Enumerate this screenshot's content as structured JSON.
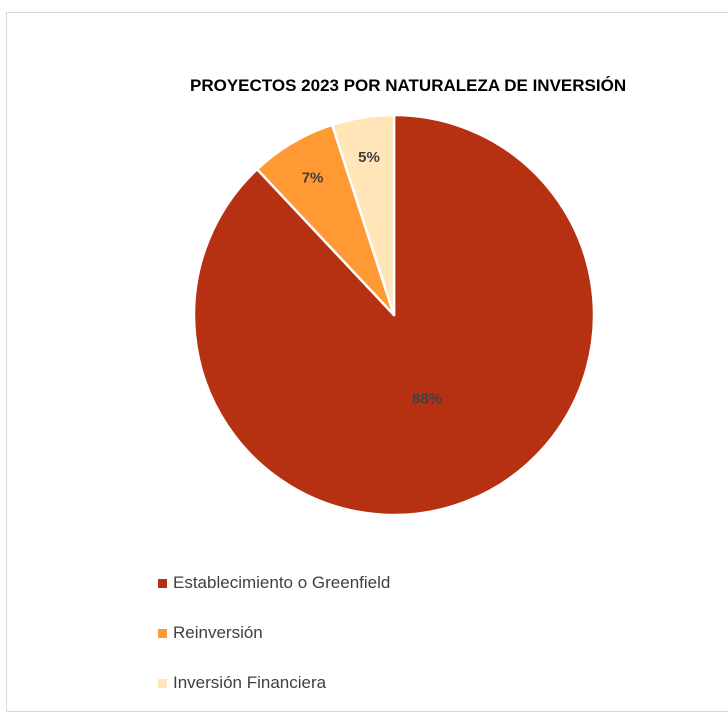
{
  "chart_data": {
    "type": "pie",
    "title": "PROYECTOS 2023 POR NATURALEZA DE INVERSIÓN",
    "categories": [
      "Establecimiento o Greenfield",
      "Reinversión",
      "Inversión Financiera"
    ],
    "values": [
      88,
      7,
      5
    ],
    "labels": [
      "88%",
      "7%",
      "5%"
    ],
    "colors": [
      "#B53111",
      "#FF9933",
      "#FFE5B8"
    ],
    "legend_position": "bottom-left"
  }
}
